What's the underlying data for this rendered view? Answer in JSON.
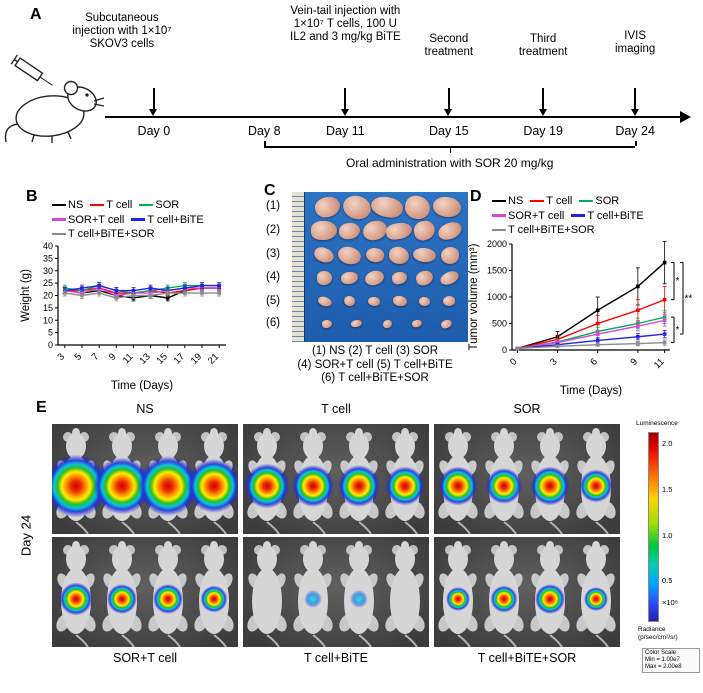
{
  "labels": {
    "A": "A",
    "B": "B",
    "C": "C",
    "D": "D",
    "E": "E"
  },
  "timeline": {
    "events": [
      {
        "day": "Day 0",
        "annotation": "Subcutaneous injection with 1×10⁷ SKOV3 cells"
      },
      {
        "day": "Day 8",
        "annotation": ""
      },
      {
        "day": "Day 11",
        "annotation": "Vein-tail injection with 1×10⁷ T cells, 100 U IL2 and 3 mg/kg BiTE"
      },
      {
        "day": "Day 15",
        "annotation": "Second treatment"
      },
      {
        "day": "Day 19",
        "annotation": "Third treatment"
      },
      {
        "day": "Day 24",
        "annotation": "IVIS imaging"
      }
    ],
    "bracket_label": "Oral administration with SOR 20 mg/kg"
  },
  "chart_data": [
    {
      "id": "weight",
      "type": "line",
      "title": "",
      "xlabel": "Time (Days)",
      "ylabel": "Weight (g)",
      "x": [
        3,
        5,
        7,
        9,
        11,
        13,
        15,
        17,
        19,
        21
      ],
      "ylim": [
        0,
        40
      ],
      "yticks": [
        0,
        5,
        10,
        15,
        20,
        25,
        30,
        35,
        40
      ],
      "grid": false,
      "legend_position": "top",
      "series": [
        {
          "name": "NS",
          "color": "#000000",
          "err": 1.2,
          "values": [
            22,
            21,
            22,
            20,
            19,
            20,
            19,
            22,
            23,
            23
          ]
        },
        {
          "name": "T cell",
          "color": "#ff0000",
          "err": 1.2,
          "values": [
            22,
            22,
            23,
            21,
            21,
            22,
            21,
            22,
            23,
            23
          ]
        },
        {
          "name": "SOR",
          "color": "#00b050",
          "err": 1.2,
          "values": [
            23,
            22,
            24,
            22,
            21,
            22,
            23,
            24,
            24,
            24
          ]
        },
        {
          "name": "SOR+T cell",
          "color": "#d946d9",
          "err": 1.2,
          "values": [
            22,
            21,
            23,
            20,
            21,
            21,
            22,
            23,
            23,
            23
          ]
        },
        {
          "name": "T cell+BiTE",
          "color": "#2323e6",
          "err": 1.2,
          "values": [
            22,
            23,
            24,
            22,
            22,
            23,
            22,
            23,
            24,
            24
          ]
        },
        {
          "name": "T cell+BiTE+SOR",
          "color": "#8c8c8c",
          "err": 1.2,
          "values": [
            21,
            20,
            21,
            19,
            20,
            20,
            21,
            21,
            21,
            21
          ]
        }
      ]
    },
    {
      "id": "tumor_volume",
      "type": "line",
      "title": "",
      "xlabel": "Time (Days)",
      "ylabel": "Tumor volume (mm³)",
      "x": [
        0,
        3,
        6,
        9,
        11
      ],
      "ylim": [
        0,
        2000
      ],
      "yticks": [
        0,
        500,
        1000,
        1500,
        2000
      ],
      "grid": false,
      "legend_position": "top",
      "series": [
        {
          "name": "NS",
          "color": "#000000",
          "values": [
            30,
            250,
            750,
            1200,
            1650
          ],
          "err": [
            10,
            100,
            250,
            350,
            400
          ]
        },
        {
          "name": "T cell",
          "color": "#ff0000",
          "values": [
            30,
            200,
            500,
            750,
            950
          ],
          "err": [
            10,
            80,
            150,
            200,
            250
          ]
        },
        {
          "name": "SOR",
          "color": "#00b050",
          "values": [
            30,
            150,
            350,
            500,
            620
          ],
          "err": [
            10,
            50,
            80,
            100,
            120
          ]
        },
        {
          "name": "SOR+T cell",
          "color": "#d946d9",
          "values": [
            30,
            140,
            300,
            450,
            560
          ],
          "err": [
            10,
            40,
            70,
            90,
            110
          ]
        },
        {
          "name": "T cell+BiTE",
          "color": "#2323e6",
          "values": [
            30,
            100,
            180,
            250,
            300
          ],
          "err": [
            10,
            30,
            50,
            60,
            70
          ]
        },
        {
          "name": "T cell+BiTE+SOR",
          "color": "#8c8c8c",
          "values": [
            30,
            70,
            100,
            120,
            140
          ],
          "err": [
            10,
            20,
            30,
            40,
            50
          ]
        }
      ],
      "significance": [
        {
          "label": "*",
          "from": 1650,
          "to": 950,
          "level": 0
        },
        {
          "label": "**",
          "from": 1650,
          "to": 300,
          "level": 1
        },
        {
          "label": "*",
          "from": 620,
          "to": 140,
          "level": 0
        }
      ]
    }
  ],
  "tumor_photo": {
    "rows": [
      {
        "label": "(1)",
        "group": "NS",
        "count": 5,
        "size": 25
      },
      {
        "label": "(2)",
        "group": "T cell",
        "count": 6,
        "size": 21
      },
      {
        "label": "(3)",
        "group": "SOR",
        "count": 6,
        "size": 18
      },
      {
        "label": "(4)",
        "group": "SOR+T cell",
        "count": 6,
        "size": 15
      },
      {
        "label": "(5)",
        "group": "T cell+BiTE",
        "count": 6,
        "size": 11
      },
      {
        "label": "(6)",
        "group": "T cell+BiTE+SOR",
        "count": 5,
        "size": 9
      }
    ],
    "caption_lines": [
      "(1) NS  (2) T cell  (3) SOR",
      "(4) SOR+T cell  (5) T cell+BiTE",
      "(6) T cell+BiTE+SOR"
    ]
  },
  "ivis": {
    "row_label": "Day 24",
    "panels": [
      {
        "label": "NS",
        "spots": [
          21,
          19,
          20,
          18
        ]
      },
      {
        "label": "T cell",
        "spots": [
          15,
          14,
          14,
          13
        ]
      },
      {
        "label": "SOR",
        "spots": [
          13,
          12,
          13,
          11
        ]
      },
      {
        "label": "SOR+T cell",
        "spots": [
          11,
          10,
          10,
          9
        ]
      },
      {
        "label": "T cell+BiTE",
        "spots": [
          0,
          6,
          6,
          0
        ]
      },
      {
        "label": "T cell+BiTE+SOR",
        "spots": [
          8,
          9,
          10,
          8
        ]
      }
    ],
    "colorbar": {
      "title": "Luminescence",
      "ticks": [
        "2.0",
        "1.5",
        "1.0",
        "0.5"
      ],
      "exponent": "×10⁸",
      "footer_lines": [
        "Radiance",
        "(p/sec/cm²/sr)"
      ],
      "scale_lines": [
        "Color Scale",
        "Min = 1.00e7",
        "Max = 2.00e8"
      ]
    }
  }
}
